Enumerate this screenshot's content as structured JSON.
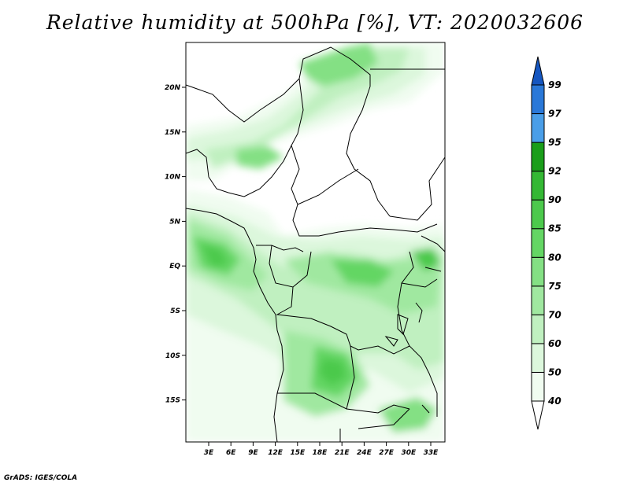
{
  "title": "Relative humidity at 500hPa [%], VT: 2020032606",
  "credit": "GrADS: IGES/COLA",
  "colors": {
    "c40": "#f0fcf0",
    "c50": "#dcf7dc",
    "c60": "#c0f0c0",
    "c70": "#a0e8a0",
    "c75": "#84e084",
    "c80": "#64d664",
    "c85": "#4cc94c",
    "c90": "#34b834",
    "c92": "#1a9e1a",
    "c95": "#4a9ee8",
    "c97": "#2a78d8",
    "c99": "#1556c0"
  },
  "map": {
    "lon_labels": [
      "3E",
      "6E",
      "9E",
      "12E",
      "15E",
      "18E",
      "21E",
      "24E",
      "27E",
      "30E",
      "33E"
    ],
    "lat_labels": [
      "20N",
      "15N",
      "10N",
      "5N",
      "EQ",
      "5S",
      "10S",
      "15S"
    ]
  },
  "colorbar": {
    "labels": [
      "40",
      "50",
      "60",
      "70",
      "75",
      "80",
      "85",
      "90",
      "92",
      "95",
      "97",
      "99"
    ]
  }
}
